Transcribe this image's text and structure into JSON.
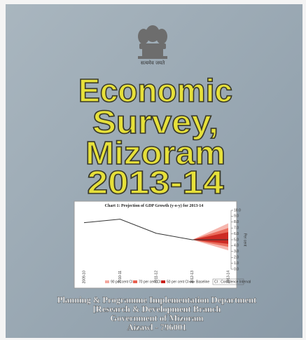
{
  "cover": {
    "motto": "सत्यमेव जयते",
    "title": [
      "Economic",
      "Survey,",
      "Mizoram",
      "2013-14"
    ],
    "publisher": [
      "Planning & Programme Implementation Department",
      "[Research & Development Branch",
      "Government of Mizoram",
      "Aizawl - 796001"
    ]
  },
  "chart_data": {
    "type": "line",
    "title": "Chart 1: Projection of GDP Growth (y-o-y) for 2013-14",
    "categories": [
      "2009-10",
      "2010-11",
      "2011-12",
      "2012-13",
      "2013-14"
    ],
    "series": [
      {
        "name": "Baseline",
        "color": "#333333",
        "values": [
          7.9,
          8.5,
          6.1,
          5.0,
          5.0
        ]
      }
    ],
    "fan": [
      {
        "name": "90 per cent CI",
        "color": "#f4a9a0",
        "low": 3.2,
        "high": 7.8
      },
      {
        "name": "70 per cent CI",
        "color": "#e8604f",
        "low": 3.8,
        "high": 7.0
      },
      {
        "name": "50 per cent CI",
        "color": "#c8201a",
        "low": 4.3,
        "high": 6.3
      }
    ],
    "legend_note": "CI : Confidence Interval",
    "y_label": "Per cent",
    "ylim": [
      0,
      10
    ],
    "yticks": [
      {
        "value": 0,
        "label": "0.0"
      },
      {
        "value": 1,
        "label": "1.0"
      },
      {
        "value": 2,
        "label": "2.0"
      },
      {
        "value": 3,
        "label": "3.0"
      },
      {
        "value": 4,
        "label": "4.0"
      },
      {
        "value": 5,
        "label": "5.0"
      },
      {
        "value": 6,
        "label": "6.0"
      },
      {
        "value": 7,
        "label": "7.0"
      },
      {
        "value": 8,
        "label": "8.0"
      },
      {
        "value": 9,
        "label": "9.0"
      },
      {
        "value": 10,
        "label": "10.0"
      }
    ]
  }
}
